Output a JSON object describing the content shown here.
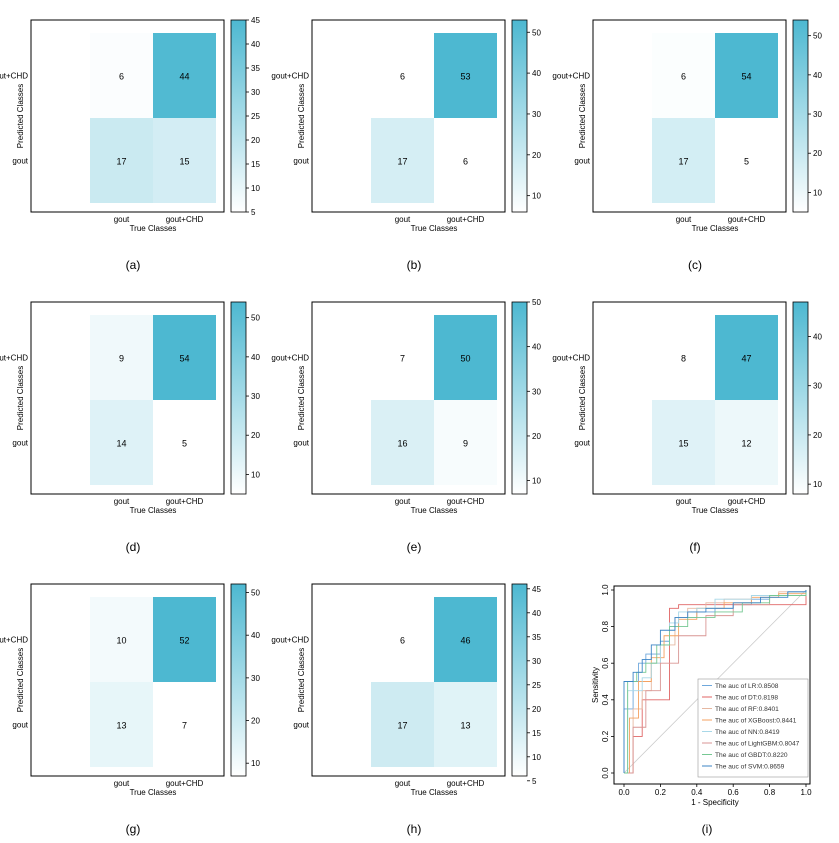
{
  "colors": {
    "low": "#ffffff",
    "high": "#4db8d1",
    "frame": "#000000",
    "diagonal": "#cccccc"
  },
  "chart_data": [
    {
      "type": "heatmap",
      "panel_label": "(a)",
      "xlabel": "True Classes",
      "ylabel": "Predicted Classes",
      "x_categories": [
        "gout",
        "gout+CHD"
      ],
      "y_categories": [
        "gout+CHD",
        "gout"
      ],
      "values": [
        [
          6,
          44
        ],
        [
          17,
          15
        ]
      ],
      "colorbar": {
        "min": 5,
        "max": 45,
        "ticks": [
          5,
          10,
          15,
          20,
          25,
          30,
          35,
          40,
          45
        ]
      }
    },
    {
      "type": "heatmap",
      "panel_label": "(b)",
      "xlabel": "True Classes",
      "ylabel": "Predicted Classes",
      "x_categories": [
        "gout",
        "gout+CHD"
      ],
      "y_categories": [
        "gout+CHD",
        "gout"
      ],
      "values": [
        [
          6,
          53
        ],
        [
          17,
          6
        ]
      ],
      "colorbar": {
        "min": 6,
        "max": 53,
        "ticks": [
          10,
          20,
          30,
          40,
          50
        ]
      }
    },
    {
      "type": "heatmap",
      "panel_label": "(c)",
      "xlabel": "True Classes",
      "ylabel": "Predicted Classes",
      "x_categories": [
        "gout",
        "gout+CHD"
      ],
      "y_categories": [
        "gout+CHD",
        "gout"
      ],
      "values": [
        [
          6,
          54
        ],
        [
          17,
          5
        ]
      ],
      "colorbar": {
        "min": 5,
        "max": 54,
        "ticks": [
          10,
          20,
          30,
          40,
          50
        ]
      }
    },
    {
      "type": "heatmap",
      "panel_label": "(d)",
      "xlabel": "True Classes",
      "ylabel": "Predicted Classes",
      "x_categories": [
        "gout",
        "gout+CHD"
      ],
      "y_categories": [
        "gout+CHD",
        "gout"
      ],
      "values": [
        [
          9,
          54
        ],
        [
          14,
          5
        ]
      ],
      "colorbar": {
        "min": 5,
        "max": 54,
        "ticks": [
          10,
          20,
          30,
          40,
          50
        ]
      }
    },
    {
      "type": "heatmap",
      "panel_label": "(e)",
      "xlabel": "True Classes",
      "ylabel": "Predicted Classes",
      "x_categories": [
        "gout",
        "gout+CHD"
      ],
      "y_categories": [
        "gout+CHD",
        "gout"
      ],
      "values": [
        [
          7,
          50
        ],
        [
          16,
          9
        ]
      ],
      "colorbar": {
        "min": 7,
        "max": 50,
        "ticks": [
          10,
          20,
          30,
          40,
          50
        ]
      }
    },
    {
      "type": "heatmap",
      "panel_label": "(f)",
      "xlabel": "True Classes",
      "ylabel": "Predicted Classes",
      "x_categories": [
        "gout",
        "gout+CHD"
      ],
      "y_categories": [
        "gout+CHD",
        "gout"
      ],
      "values": [
        [
          8,
          47
        ],
        [
          15,
          12
        ]
      ],
      "colorbar": {
        "min": 8,
        "max": 47,
        "ticks": [
          10,
          20,
          30,
          40
        ]
      }
    },
    {
      "type": "heatmap",
      "panel_label": "(g)",
      "xlabel": "True Classes",
      "ylabel": "Predicted Classes",
      "x_categories": [
        "gout",
        "gout+CHD"
      ],
      "y_categories": [
        "gout+CHD",
        "gout"
      ],
      "values": [
        [
          10,
          52
        ],
        [
          13,
          7
        ]
      ],
      "colorbar": {
        "min": 7,
        "max": 52,
        "ticks": [
          10,
          20,
          30,
          40,
          50
        ]
      }
    },
    {
      "type": "heatmap",
      "panel_label": "(h)",
      "xlabel": "True Classes",
      "ylabel": "Predicted Classes",
      "x_categories": [
        "gout",
        "gout+CHD"
      ],
      "y_categories": [
        "gout+CHD",
        "gout"
      ],
      "values": [
        [
          6,
          46
        ],
        [
          17,
          13
        ]
      ],
      "colorbar": {
        "min": 6,
        "max": 46,
        "ticks": [
          5,
          10,
          15,
          20,
          25,
          30,
          35,
          40,
          45
        ]
      }
    },
    {
      "type": "line",
      "panel_label": "(i)",
      "xlabel": "1 - Specificity",
      "ylabel": "Sensitivity",
      "xlim": [
        0,
        1
      ],
      "ylim": [
        0,
        1
      ],
      "xticks": [
        0.0,
        0.2,
        0.4,
        0.6,
        0.8,
        1.0
      ],
      "yticks": [
        0.0,
        0.2,
        0.4,
        0.6,
        0.8,
        1.0
      ],
      "tick_labels": [
        "0.0",
        "0.2",
        "0.4",
        "0.6",
        "0.8",
        "1.0"
      ],
      "legend_position": "bottom-right",
      "series": [
        {
          "name": "The auc of LR:0.8508",
          "color": "#6fa8dc",
          "x": [
            0,
            0,
            0.05,
            0.08,
            0.12,
            0.2,
            0.25,
            0.3,
            0.4,
            0.5,
            0.6,
            0.7,
            0.8,
            0.9,
            1
          ],
          "y": [
            0,
            0.35,
            0.5,
            0.6,
            0.65,
            0.72,
            0.8,
            0.85,
            0.88,
            0.9,
            0.92,
            0.95,
            0.97,
            0.99,
            1
          ]
        },
        {
          "name": "The auc of DT:0.8198",
          "color": "#e06666",
          "x": [
            0,
            0.05,
            0.1,
            0.25,
            0.3,
            1
          ],
          "y": [
            0,
            0.2,
            0.4,
            0.9,
            0.92,
            1
          ]
        },
        {
          "name": "The auc of RF:0.8401",
          "color": "#e6b8a2",
          "x": [
            0,
            0.05,
            0.1,
            0.15,
            0.2,
            0.28,
            0.35,
            0.45,
            0.55,
            0.7,
            0.85,
            1
          ],
          "y": [
            0,
            0.35,
            0.45,
            0.6,
            0.7,
            0.85,
            0.9,
            0.93,
            0.95,
            0.97,
            0.99,
            1
          ]
        },
        {
          "name": "The auc of XGBoost:0.8441",
          "color": "#f4a261",
          "x": [
            0,
            0.03,
            0.08,
            0.15,
            0.22,
            0.3,
            0.4,
            0.55,
            0.7,
            0.85,
            1
          ],
          "y": [
            0,
            0.3,
            0.5,
            0.63,
            0.75,
            0.84,
            0.9,
            0.93,
            0.96,
            0.98,
            1
          ]
        },
        {
          "name": "The auc of NN:0.8419",
          "color": "#a8d8e8",
          "x": [
            0,
            0.02,
            0.1,
            0.15,
            0.2,
            0.25,
            0.3,
            0.4,
            0.5,
            0.7,
            0.9,
            1
          ],
          "y": [
            0,
            0.45,
            0.52,
            0.6,
            0.7,
            0.82,
            0.88,
            0.9,
            0.95,
            0.97,
            0.99,
            1
          ]
        },
        {
          "name": "The auc of LightGBM:0.8047",
          "color": "#d99694",
          "x": [
            0,
            0.05,
            0.12,
            0.2,
            0.3,
            0.45,
            0.6,
            0.8,
            1
          ],
          "y": [
            0,
            0.25,
            0.45,
            0.6,
            0.75,
            0.86,
            0.92,
            0.97,
            1
          ]
        },
        {
          "name": "The auc of GBDT:0.8220",
          "color": "#76c893",
          "x": [
            0,
            0.02,
            0.07,
            0.12,
            0.18,
            0.25,
            0.35,
            0.5,
            0.65,
            0.8,
            1
          ],
          "y": [
            0,
            0.5,
            0.55,
            0.6,
            0.7,
            0.8,
            0.85,
            0.88,
            0.93,
            0.97,
            1
          ]
        },
        {
          "name": "The auc of SVM:0.8659",
          "color": "#3d85c6",
          "x": [
            0,
            0,
            0.05,
            0.1,
            0.15,
            0.2,
            0.28,
            0.35,
            0.45,
            0.6,
            0.75,
            0.9,
            1
          ],
          "y": [
            0,
            0.5,
            0.55,
            0.62,
            0.7,
            0.78,
            0.85,
            0.88,
            0.9,
            0.93,
            0.96,
            0.99,
            1
          ]
        }
      ]
    }
  ]
}
